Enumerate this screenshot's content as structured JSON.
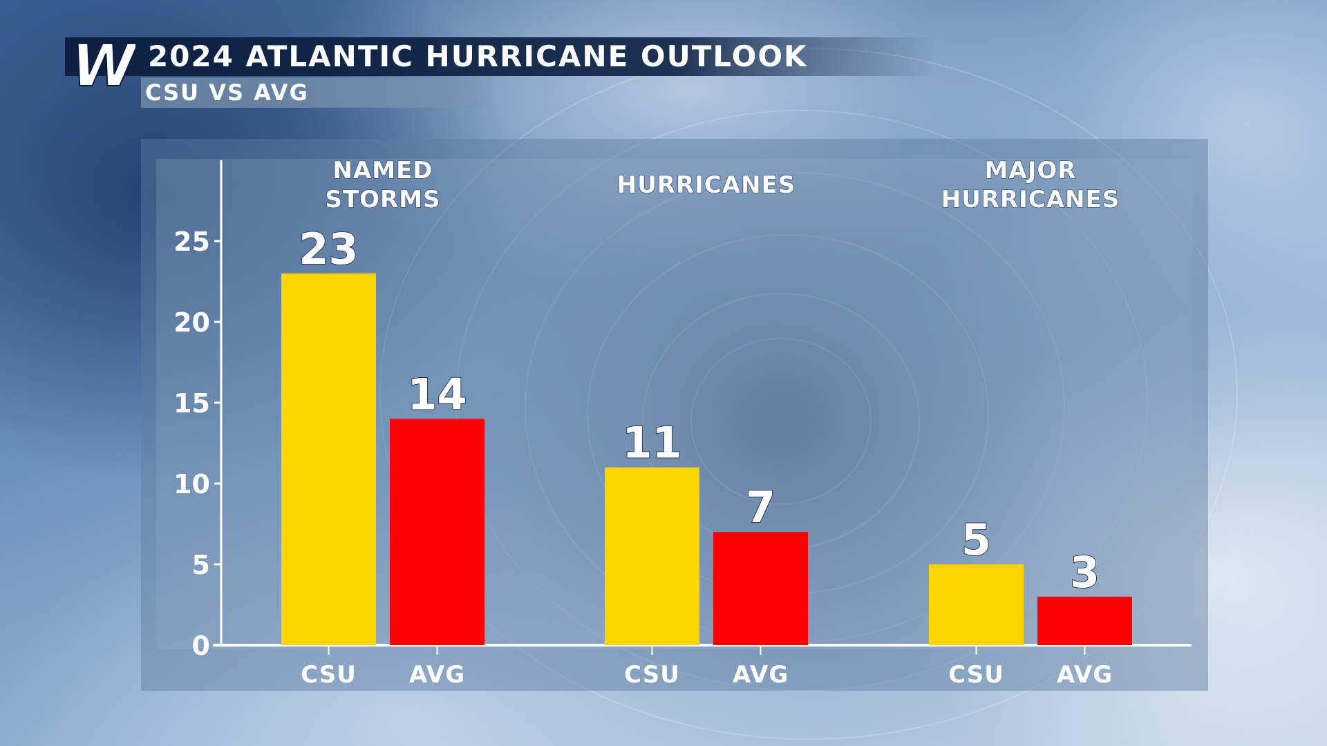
{
  "header": {
    "logo_letter": "W",
    "title": "2024 ATLANTIC HURRICANE OUTLOOK",
    "subtitle": "CSU VS AVG"
  },
  "colors": {
    "csu": "#FFD400",
    "avg": "#FF0000",
    "header_bg": "#0E2244",
    "axis": "#FFFFFF"
  },
  "chart_data": {
    "type": "bar",
    "categories": [
      [
        "NAMED",
        "STORMS"
      ],
      [
        "HURRICANES"
      ],
      [
        "MAJOR",
        "HURRICANES"
      ]
    ],
    "series": [
      {
        "name": "CSU",
        "values": [
          23,
          11,
          5
        ]
      },
      {
        "name": "AVG",
        "values": [
          14,
          7,
          3
        ]
      }
    ],
    "yticks": [
      "0",
      "5",
      "10",
      "15",
      "20",
      "25"
    ],
    "ylim": [
      0,
      30
    ],
    "grid": false,
    "legend": "none"
  }
}
